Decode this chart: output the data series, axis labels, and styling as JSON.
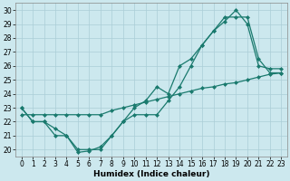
{
  "title": "",
  "xlabel": "Humidex (Indice chaleur)",
  "bg_color": "#cce8ee",
  "grid_color": "#aacdd6",
  "line_color": "#1a7a6e",
  "xlim": [
    -0.5,
    23.5
  ],
  "ylim": [
    19.5,
    30.5
  ],
  "xticks": [
    0,
    1,
    2,
    3,
    4,
    5,
    6,
    7,
    8,
    9,
    10,
    11,
    12,
    13,
    14,
    15,
    16,
    17,
    18,
    19,
    20,
    21,
    22,
    23
  ],
  "yticks": [
    20,
    21,
    22,
    23,
    24,
    25,
    26,
    27,
    28,
    29,
    30
  ],
  "line1_x": [
    0,
    1,
    2,
    3,
    4,
    5,
    6,
    7,
    8,
    9,
    10,
    11,
    12,
    13,
    14,
    15,
    16,
    17,
    18,
    19,
    20,
    21,
    22,
    23
  ],
  "line1_y": [
    23,
    22,
    22,
    21,
    21,
    20,
    20,
    20,
    21,
    22,
    23,
    23.5,
    24.5,
    24,
    26,
    26.5,
    27.5,
    28.5,
    29.5,
    29.5,
    29.5,
    26.5,
    25.5,
    25.5
  ],
  "line2_x": [
    0,
    1,
    2,
    3,
    4,
    5,
    6,
    7,
    8,
    9,
    10,
    11,
    12,
    13,
    14,
    15,
    16,
    17,
    18,
    19,
    20,
    21,
    22,
    23
  ],
  "line2_y": [
    23,
    22,
    22,
    21.5,
    21,
    19.8,
    19.9,
    20.2,
    21,
    22,
    22.5,
    22.5,
    22.5,
    23.5,
    24.5,
    26,
    27.5,
    28.5,
    29.2,
    30,
    29.0,
    26.0,
    25.8,
    25.8
  ],
  "line3_x": [
    0,
    1,
    2,
    3,
    4,
    5,
    6,
    7,
    8,
    9,
    10,
    11,
    12,
    13,
    14,
    15,
    16,
    17,
    18,
    19,
    20,
    21,
    22,
    23
  ],
  "line3_y": [
    22.5,
    22.5,
    22.5,
    22.5,
    22.5,
    22.5,
    22.5,
    22.5,
    22.8,
    23,
    23.2,
    23.4,
    23.6,
    23.8,
    24,
    24.2,
    24.4,
    24.5,
    24.7,
    24.8,
    25,
    25.2,
    25.4,
    25.5
  ],
  "marker": "D",
  "marker_size": 2,
  "linewidth": 0.9,
  "tick_fontsize": 5.5,
  "xlabel_fontsize": 6.5
}
